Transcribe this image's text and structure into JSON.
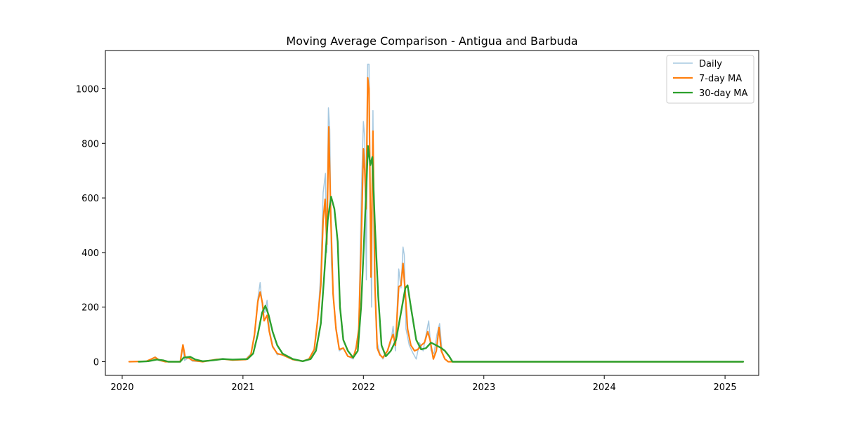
{
  "chart_data": {
    "type": "line",
    "title": "Moving Average Comparison - Antigua and Barbuda",
    "xlabel": "",
    "ylabel": "",
    "xlim": [
      "2019-11-11",
      "2025-04-13"
    ],
    "ylim": [
      -50,
      1140
    ],
    "x_ticks": [
      "2020",
      "2021",
      "2022",
      "2023",
      "2024",
      "2025"
    ],
    "y_ticks": [
      0,
      200,
      400,
      600,
      800,
      1000
    ],
    "grid": false,
    "legend_position": "top-right",
    "series": [
      {
        "name": "Daily",
        "color": "#a6c8e0",
        "points": [
          [
            "2020-01-22",
            0
          ],
          [
            "2020-03-15",
            0
          ],
          [
            "2020-04-10",
            18
          ],
          [
            "2020-04-20",
            5
          ],
          [
            "2020-05-10",
            0
          ],
          [
            "2020-06-25",
            0
          ],
          [
            "2020-07-02",
            60
          ],
          [
            "2020-07-08",
            5
          ],
          [
            "2020-07-20",
            15
          ],
          [
            "2020-08-01",
            2
          ],
          [
            "2020-09-01",
            0
          ],
          [
            "2020-10-10",
            8
          ],
          [
            "2020-11-01",
            12
          ],
          [
            "2020-12-01",
            6
          ],
          [
            "2021-01-10",
            10
          ],
          [
            "2021-01-25",
            30
          ],
          [
            "2021-02-05",
            90
          ],
          [
            "2021-02-15",
            230
          ],
          [
            "2021-02-22",
            290
          ],
          [
            "2021-03-01",
            200
          ],
          [
            "2021-03-08",
            180
          ],
          [
            "2021-03-15",
            225
          ],
          [
            "2021-03-22",
            120
          ],
          [
            "2021-04-01",
            60
          ],
          [
            "2021-04-15",
            25
          ],
          [
            "2021-05-01",
            30
          ],
          [
            "2021-06-01",
            8
          ],
          [
            "2021-07-01",
            2
          ],
          [
            "2021-07-20",
            10
          ],
          [
            "2021-08-05",
            40
          ],
          [
            "2021-08-15",
            140
          ],
          [
            "2021-08-25",
            330
          ],
          [
            "2021-09-01",
            620
          ],
          [
            "2021-09-08",
            690
          ],
          [
            "2021-09-12",
            400
          ],
          [
            "2021-09-17",
            930
          ],
          [
            "2021-09-21",
            850
          ],
          [
            "2021-09-26",
            360
          ],
          [
            "2021-10-03",
            220
          ],
          [
            "2021-10-10",
            130
          ],
          [
            "2021-10-20",
            40
          ],
          [
            "2021-11-01",
            50
          ],
          [
            "2021-11-15",
            20
          ],
          [
            "2021-12-01",
            10
          ],
          [
            "2021-12-10",
            60
          ],
          [
            "2021-12-18",
            120
          ],
          [
            "2021-12-26",
            630
          ],
          [
            "2022-01-01",
            880
          ],
          [
            "2022-01-05",
            820
          ],
          [
            "2022-01-10",
            300
          ],
          [
            "2022-01-14",
            1090
          ],
          [
            "2022-01-18",
            1090
          ],
          [
            "2022-01-22",
            530
          ],
          [
            "2022-01-26",
            200
          ],
          [
            "2022-01-30",
            920
          ],
          [
            "2022-02-03",
            330
          ],
          [
            "2022-02-10",
            80
          ],
          [
            "2022-02-20",
            30
          ],
          [
            "2022-03-01",
            10
          ],
          [
            "2022-03-15",
            40
          ],
          [
            "2022-03-25",
            70
          ],
          [
            "2022-04-01",
            130
          ],
          [
            "2022-04-08",
            40
          ],
          [
            "2022-04-18",
            340
          ],
          [
            "2022-04-25",
            270
          ],
          [
            "2022-05-01",
            420
          ],
          [
            "2022-05-05",
            390
          ],
          [
            "2022-05-10",
            120
          ],
          [
            "2022-05-20",
            60
          ],
          [
            "2022-06-01",
            30
          ],
          [
            "2022-06-10",
            10
          ],
          [
            "2022-06-20",
            70
          ],
          [
            "2022-07-01",
            40
          ],
          [
            "2022-07-10",
            100
          ],
          [
            "2022-07-18",
            150
          ],
          [
            "2022-07-25",
            40
          ],
          [
            "2022-08-03",
            30
          ],
          [
            "2022-08-12",
            100
          ],
          [
            "2022-08-20",
            140
          ],
          [
            "2022-08-28",
            30
          ],
          [
            "2022-09-05",
            10
          ],
          [
            "2022-09-15",
            0
          ],
          [
            "2025-02-25",
            0
          ]
        ]
      },
      {
        "name": "7-day MA",
        "color": "#ff7f0e",
        "points": [
          [
            "2020-01-22",
            0
          ],
          [
            "2020-03-15",
            2
          ],
          [
            "2020-04-10",
            16
          ],
          [
            "2020-04-22",
            6
          ],
          [
            "2020-05-10",
            0
          ],
          [
            "2020-06-25",
            0
          ],
          [
            "2020-07-03",
            62
          ],
          [
            "2020-07-10",
            15
          ],
          [
            "2020-07-20",
            14
          ],
          [
            "2020-08-01",
            5
          ],
          [
            "2020-09-01",
            0
          ],
          [
            "2020-10-10",
            8
          ],
          [
            "2020-11-01",
            10
          ],
          [
            "2020-12-01",
            6
          ],
          [
            "2021-01-10",
            8
          ],
          [
            "2021-01-25",
            25
          ],
          [
            "2021-02-05",
            100
          ],
          [
            "2021-02-15",
            220
          ],
          [
            "2021-02-22",
            255
          ],
          [
            "2021-03-01",
            215
          ],
          [
            "2021-03-06",
            150
          ],
          [
            "2021-03-15",
            170
          ],
          [
            "2021-03-22",
            110
          ],
          [
            "2021-04-01",
            55
          ],
          [
            "2021-04-15",
            30
          ],
          [
            "2021-05-01",
            25
          ],
          [
            "2021-06-01",
            8
          ],
          [
            "2021-07-01",
            2
          ],
          [
            "2021-07-20",
            10
          ],
          [
            "2021-08-05",
            45
          ],
          [
            "2021-08-15",
            150
          ],
          [
            "2021-08-25",
            280
          ],
          [
            "2021-09-01",
            520
          ],
          [
            "2021-09-07",
            595
          ],
          [
            "2021-09-12",
            430
          ],
          [
            "2021-09-18",
            860
          ],
          [
            "2021-09-24",
            540
          ],
          [
            "2021-10-01",
            250
          ],
          [
            "2021-10-10",
            120
          ],
          [
            "2021-10-20",
            45
          ],
          [
            "2021-11-01",
            50
          ],
          [
            "2021-11-15",
            20
          ],
          [
            "2021-12-01",
            15
          ],
          [
            "2021-12-10",
            50
          ],
          [
            "2021-12-18",
            120
          ],
          [
            "2021-12-26",
            470
          ],
          [
            "2022-01-01",
            780
          ],
          [
            "2022-01-05",
            700
          ],
          [
            "2022-01-09",
            560
          ],
          [
            "2022-01-14",
            1040
          ],
          [
            "2022-01-18",
            1000
          ],
          [
            "2022-01-24",
            310
          ],
          [
            "2022-01-30",
            845
          ],
          [
            "2022-02-05",
            280
          ],
          [
            "2022-02-12",
            50
          ],
          [
            "2022-02-20",
            25
          ],
          [
            "2022-03-01",
            15
          ],
          [
            "2022-03-15",
            40
          ],
          [
            "2022-03-25",
            80
          ],
          [
            "2022-04-01",
            100
          ],
          [
            "2022-04-08",
            60
          ],
          [
            "2022-04-18",
            275
          ],
          [
            "2022-04-25",
            280
          ],
          [
            "2022-05-01",
            360
          ],
          [
            "2022-05-08",
            250
          ],
          [
            "2022-05-15",
            120
          ],
          [
            "2022-05-25",
            60
          ],
          [
            "2022-06-05",
            40
          ],
          [
            "2022-06-15",
            45
          ],
          [
            "2022-06-25",
            60
          ],
          [
            "2022-07-05",
            70
          ],
          [
            "2022-07-15",
            110
          ],
          [
            "2022-07-22",
            80
          ],
          [
            "2022-08-01",
            10
          ],
          [
            "2022-08-10",
            40
          ],
          [
            "2022-08-18",
            125
          ],
          [
            "2022-08-25",
            40
          ],
          [
            "2022-09-05",
            10
          ],
          [
            "2022-09-15",
            0
          ],
          [
            "2025-02-25",
            0
          ]
        ]
      },
      {
        "name": "30-day MA",
        "color": "#2ca02c",
        "points": [
          [
            "2020-02-20",
            0
          ],
          [
            "2020-03-20",
            2
          ],
          [
            "2020-04-15",
            8
          ],
          [
            "2020-05-05",
            5
          ],
          [
            "2020-05-20",
            0
          ],
          [
            "2020-06-25",
            0
          ],
          [
            "2020-07-05",
            15
          ],
          [
            "2020-07-25",
            18
          ],
          [
            "2020-08-10",
            8
          ],
          [
            "2020-09-01",
            2
          ],
          [
            "2020-10-01",
            5
          ],
          [
            "2020-11-01",
            10
          ],
          [
            "2020-12-01",
            8
          ],
          [
            "2021-01-15",
            10
          ],
          [
            "2021-02-01",
            30
          ],
          [
            "2021-02-15",
            100
          ],
          [
            "2021-02-28",
            180
          ],
          [
            "2021-03-10",
            205
          ],
          [
            "2021-03-20",
            170
          ],
          [
            "2021-04-01",
            110
          ],
          [
            "2021-04-15",
            60
          ],
          [
            "2021-05-01",
            30
          ],
          [
            "2021-06-01",
            10
          ],
          [
            "2021-07-01",
            2
          ],
          [
            "2021-07-25",
            10
          ],
          [
            "2021-08-10",
            40
          ],
          [
            "2021-08-25",
            140
          ],
          [
            "2021-09-05",
            330
          ],
          [
            "2021-09-15",
            520
          ],
          [
            "2021-09-25",
            605
          ],
          [
            "2021-10-05",
            560
          ],
          [
            "2021-10-15",
            440
          ],
          [
            "2021-10-22",
            200
          ],
          [
            "2021-11-01",
            80
          ],
          [
            "2021-11-15",
            40
          ],
          [
            "2021-12-01",
            15
          ],
          [
            "2021-12-15",
            40
          ],
          [
            "2021-12-25",
            200
          ],
          [
            "2022-01-05",
            500
          ],
          [
            "2022-01-15",
            790
          ],
          [
            "2022-01-22",
            720
          ],
          [
            "2022-01-28",
            750
          ],
          [
            "2022-02-05",
            500
          ],
          [
            "2022-02-15",
            240
          ],
          [
            "2022-02-25",
            60
          ],
          [
            "2022-03-10",
            20
          ],
          [
            "2022-03-25",
            40
          ],
          [
            "2022-04-10",
            80
          ],
          [
            "2022-04-25",
            180
          ],
          [
            "2022-05-08",
            270
          ],
          [
            "2022-05-15",
            280
          ],
          [
            "2022-05-25",
            200
          ],
          [
            "2022-06-10",
            80
          ],
          [
            "2022-06-25",
            45
          ],
          [
            "2022-07-10",
            50
          ],
          [
            "2022-07-25",
            70
          ],
          [
            "2022-08-10",
            60
          ],
          [
            "2022-08-25",
            50
          ],
          [
            "2022-09-05",
            40
          ],
          [
            "2022-09-18",
            20
          ],
          [
            "2022-09-28",
            0
          ],
          [
            "2025-02-25",
            0
          ]
        ]
      }
    ]
  }
}
